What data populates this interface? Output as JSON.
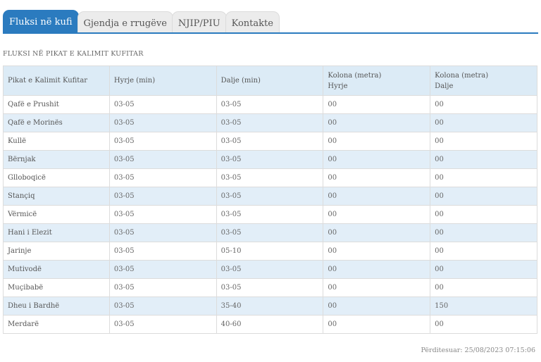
{
  "tabs": [
    {
      "label": "Fluksi në kufi",
      "active": true
    },
    {
      "label": "Gjendja e rrugëve",
      "active": false
    },
    {
      "label": "NJIP/PIU",
      "active": false
    },
    {
      "label": "Kontakte",
      "active": false
    }
  ],
  "section_title": "FLUKSI NË PIKAT E KALIMIT KUFITAR",
  "table": {
    "headers": [
      [
        "Pikat e Kalimit Kufitar"
      ],
      [
        "Hyrje (min)"
      ],
      [
        "Dalje (min)"
      ],
      [
        "Kolona (metra)",
        "Hyrje"
      ],
      [
        "Kolona (metra)",
        "Dalje"
      ]
    ],
    "rows": [
      [
        "Qafë e Prushit",
        "03-05",
        "03-05",
        "00",
        "00"
      ],
      [
        "Qafë e Morinës",
        "03-05",
        "03-05",
        "00",
        "00"
      ],
      [
        "Kullë",
        "03-05",
        "03-05",
        "00",
        "00"
      ],
      [
        "Bërnjak",
        "03-05",
        "03-05",
        "00",
        "00"
      ],
      [
        "Glloboqicë",
        "03-05",
        "03-05",
        "00",
        "00"
      ],
      [
        "Stançiq",
        "03-05",
        "03-05",
        "00",
        "00"
      ],
      [
        "Vërmicë",
        "03-05",
        "03-05",
        "00",
        "00"
      ],
      [
        "Hani i Elezit",
        "03-05",
        "03-05",
        "00",
        "00"
      ],
      [
        "Jarinje",
        "03-05",
        "05-10",
        "00",
        "00"
      ],
      [
        "Mutivodë",
        "03-05",
        "03-05",
        "00",
        "00"
      ],
      [
        "Muçibabë",
        "03-05",
        "03-05",
        "00",
        "00"
      ],
      [
        "Dheu i Bardhë",
        "03-05",
        "35-40",
        "00",
        "150"
      ],
      [
        "Merdarë",
        "03-05",
        "40-60",
        "00",
        "00"
      ]
    ]
  },
  "updated": "Përditesuar: 25/08/2023 07:15:06",
  "colors": {
    "accent": "#2b7bbf",
    "row_alt": "#e2eef8",
    "header_bg": "#dcebf6"
  }
}
